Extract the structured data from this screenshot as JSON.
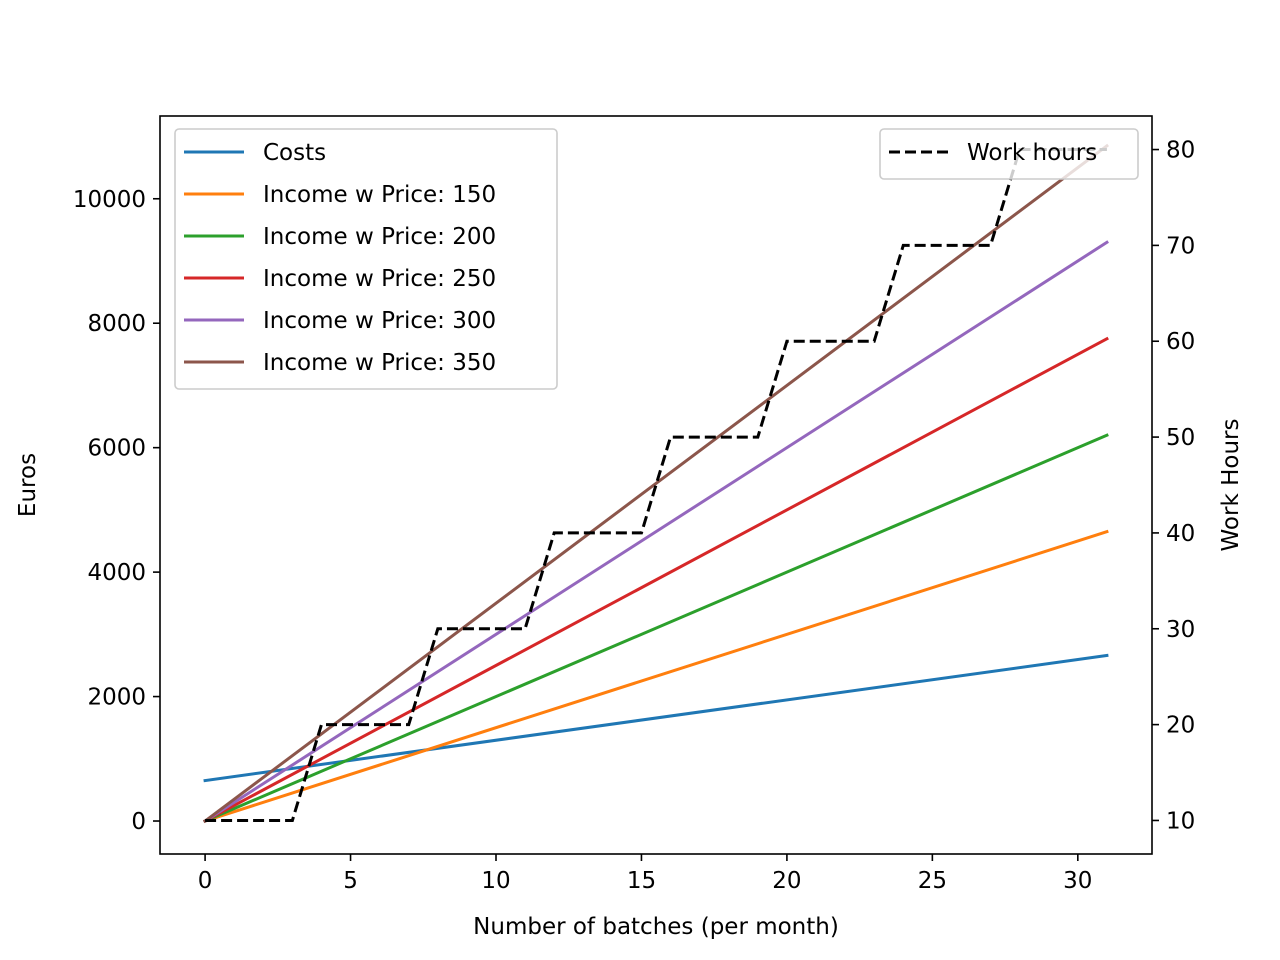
{
  "chart_data": {
    "type": "line",
    "title": "",
    "xlabel": "Number of batches (per month)",
    "ylabel": "Euros",
    "y2label": "Work Hours",
    "xlim": [
      -1.55,
      32.55
    ],
    "ylim": [
      -530,
      11330
    ],
    "y2lim": [
      6.5,
      83.5
    ],
    "xticks": [
      0,
      5,
      10,
      15,
      20,
      25,
      30
    ],
    "yticks": [
      0,
      2000,
      4000,
      6000,
      8000,
      10000
    ],
    "y2ticks": [
      10,
      20,
      30,
      40,
      50,
      60,
      70,
      80
    ],
    "grid": false,
    "legend_placement": "upper-left",
    "legend2_placement": "upper-right",
    "series": [
      {
        "name": "Costs",
        "color": "#1f77b4",
        "axis": "left",
        "x": [
          0,
          31
        ],
        "y": [
          650,
          2660
        ]
      },
      {
        "name": "Income w Price: 150",
        "color": "#ff7f0e",
        "axis": "left",
        "x": [
          0,
          31
        ],
        "y": [
          0,
          4650
        ]
      },
      {
        "name": "Income w Price: 200",
        "color": "#2ca02c",
        "axis": "left",
        "x": [
          0,
          31
        ],
        "y": [
          0,
          6200
        ]
      },
      {
        "name": "Income w Price: 250",
        "color": "#d62728",
        "axis": "left",
        "x": [
          0,
          31
        ],
        "y": [
          0,
          7750
        ]
      },
      {
        "name": "Income w Price: 300",
        "color": "#9467bd",
        "axis": "left",
        "x": [
          0,
          31
        ],
        "y": [
          0,
          9300
        ]
      },
      {
        "name": "Income w Price: 350",
        "color": "#8c564b",
        "axis": "left",
        "x": [
          0,
          31
        ],
        "y": [
          0,
          10850
        ]
      }
    ],
    "series2": [
      {
        "name": "Work hours",
        "color": "#000000",
        "style": "dashed",
        "axis": "right",
        "x": [
          0,
          1,
          2,
          3,
          4,
          5,
          6,
          7,
          8,
          9,
          10,
          11,
          12,
          13,
          14,
          15,
          16,
          17,
          18,
          19,
          20,
          21,
          22,
          23,
          24,
          25,
          26,
          27,
          28,
          29,
          30,
          31
        ],
        "y": [
          10,
          10,
          10,
          10,
          20,
          20,
          20,
          20,
          30,
          30,
          30,
          30,
          40,
          40,
          40,
          40,
          50,
          50,
          50,
          50,
          60,
          60,
          60,
          60,
          70,
          70,
          70,
          70,
          80,
          80,
          80,
          80
        ]
      }
    ]
  }
}
